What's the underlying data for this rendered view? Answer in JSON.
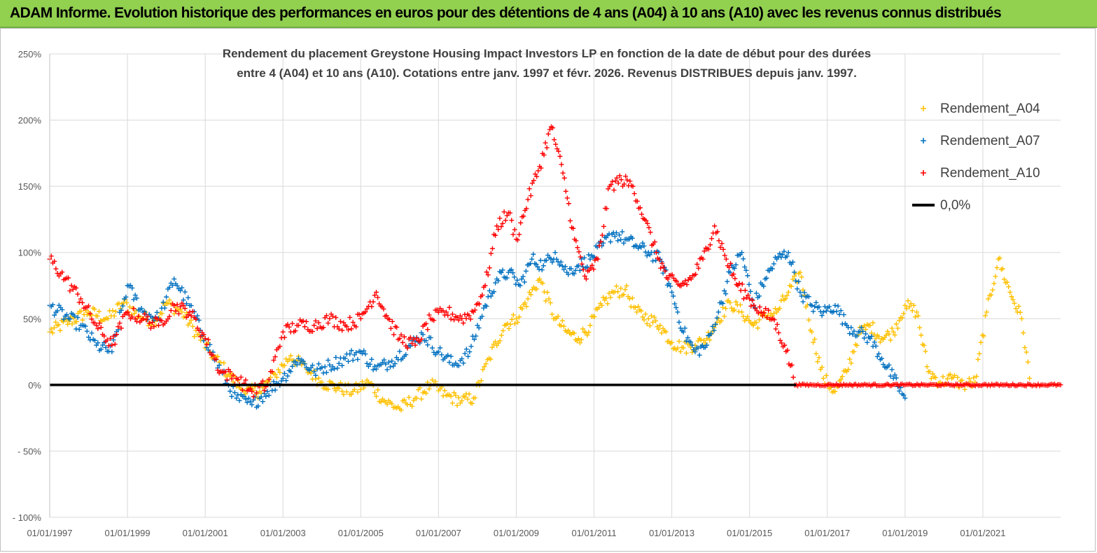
{
  "banner": {
    "title": "ADAM Informe. Evolution historique des performances en euros pour des détentions de 4 ans (A04) à 10 ans (A10) avec les revenus connus distribués"
  },
  "chart_data": {
    "type": "scatter",
    "title_lines": [
      "Rendement du placement Greystone Housing Impact Investors LP en fonction de la date de début pour des durées",
      "entre 4 (A04) et 10 ans (A10).  Cotations entre janv. 1997 et févr. 2026. Revenus DISTRIBUES depuis janv. 1997."
    ],
    "xlabel": "",
    "ylabel": "",
    "xlim": [
      1997.0,
      2023.0
    ],
    "ylim": [
      -100,
      250
    ],
    "y_ticks": [
      {
        "value": 250,
        "label": "250%"
      },
      {
        "value": 200,
        "label": "200%"
      },
      {
        "value": 150,
        "label": "150%"
      },
      {
        "value": 100,
        "label": "100%"
      },
      {
        "value": 50,
        "label": "50%"
      },
      {
        "value": 0,
        "label": "0%"
      },
      {
        "value": -50,
        "label": "- 50%"
      },
      {
        "value": -100,
        "label": "- 100%"
      }
    ],
    "x_ticks": [
      {
        "value": 1997.0,
        "label": "01/01/1997"
      },
      {
        "value": 1999.0,
        "label": "01/01/1999"
      },
      {
        "value": 2001.0,
        "label": "01/01/2001"
      },
      {
        "value": 2003.0,
        "label": "01/01/2003"
      },
      {
        "value": 2005.0,
        "label": "01/01/2005"
      },
      {
        "value": 2007.0,
        "label": "01/01/2007"
      },
      {
        "value": 2009.0,
        "label": "01/01/2009"
      },
      {
        "value": 2011.0,
        "label": "01/01/2011"
      },
      {
        "value": 2013.0,
        "label": "01/01/2013"
      },
      {
        "value": 2015.0,
        "label": "01/01/2015"
      },
      {
        "value": 2017.0,
        "label": "01/01/2017"
      },
      {
        "value": 2019.0,
        "label": "01/01/2019"
      },
      {
        "value": 2021.0,
        "label": "01/01/2021"
      }
    ],
    "grid": true,
    "legend_position": "right",
    "series": [
      {
        "name": "Rendement_A04",
        "color": "#ffc000",
        "marker": "plus",
        "x": [
          1997.0,
          1997.5,
          1998.0,
          1998.5,
          1998.9,
          1999.3,
          1999.7,
          2000.0,
          2000.4,
          2000.8,
          2001.2,
          2001.6,
          2002.0,
          2002.4,
          2002.8,
          2003.2,
          2003.6,
          2004.0,
          2004.4,
          2004.8,
          2005.2,
          2005.6,
          2006.0,
          2006.4,
          2006.8,
          2007.2,
          2007.6,
          2007.9,
          2008.3,
          2008.7,
          2009.0,
          2009.3,
          2009.6,
          2010.0,
          2010.3,
          2010.6,
          2010.9,
          2011.2,
          2011.5,
          2011.8,
          2012.1,
          2012.4,
          2012.7,
          2013.0,
          2013.3,
          2013.6,
          2013.9,
          2014.2,
          2014.5,
          2014.8,
          2015.1,
          2015.4,
          2015.7,
          2016.0,
          2016.3,
          2016.6,
          2016.9,
          2017.2,
          2017.5,
          2017.8,
          2018.1,
          2018.4,
          2018.7,
          2019.0,
          2019.3,
          2019.6,
          2019.9,
          2020.2,
          2020.5,
          2020.8,
          2021.1,
          2021.4,
          2021.7,
          2022.0,
          2022.2
        ],
        "y": [
          40,
          48,
          55,
          50,
          62,
          52,
          48,
          62,
          55,
          38,
          22,
          8,
          -5,
          -5,
          8,
          22,
          12,
          2,
          -2,
          -5,
          2,
          -12,
          -18,
          -10,
          0,
          -8,
          -12,
          -10,
          20,
          45,
          50,
          65,
          80,
          50,
          40,
          35,
          45,
          60,
          70,
          72,
          55,
          50,
          45,
          32,
          28,
          30,
          35,
          50,
          62,
          55,
          45,
          52,
          55,
          70,
          85,
          40,
          5,
          -5,
          10,
          38,
          45,
          35,
          40,
          60,
          55,
          10,
          2,
          5,
          0,
          2,
          55,
          95,
          70,
          50,
          5
        ]
      },
      {
        "name": "Rendement_A07",
        "color": "#0070c0",
        "marker": "plus",
        "x": [
          1997.0,
          1997.4,
          1997.8,
          1998.2,
          1998.6,
          1999.0,
          1999.4,
          1999.8,
          2000.2,
          2000.6,
          2001.0,
          2001.4,
          2001.8,
          2002.2,
          2002.6,
          2003.0,
          2003.4,
          2003.8,
          2004.2,
          2004.6,
          2005.0,
          2005.4,
          2005.8,
          2006.2,
          2006.6,
          2007.0,
          2007.4,
          2007.8,
          2008.2,
          2008.5,
          2008.8,
          2009.1,
          2009.4,
          2009.7,
          2010.0,
          2010.3,
          2010.6,
          2010.9,
          2011.2,
          2011.5,
          2011.8,
          2012.1,
          2012.4,
          2012.7,
          2013.0,
          2013.3,
          2013.6,
          2013.9,
          2014.2,
          2014.5,
          2014.8,
          2015.1,
          2015.4,
          2015.7,
          2016.0,
          2016.3,
          2016.6,
          2016.9,
          2017.2,
          2017.5,
          2017.8,
          2018.1,
          2018.4,
          2018.7,
          2019.0
        ],
        "y": [
          60,
          52,
          45,
          30,
          25,
          75,
          55,
          50,
          80,
          60,
          35,
          10,
          -10,
          -15,
          -5,
          5,
          20,
          10,
          15,
          20,
          25,
          12,
          18,
          28,
          38,
          25,
          15,
          25,
          60,
          80,
          85,
          75,
          95,
          90,
          100,
          85,
          90,
          95,
          105,
          115,
          110,
          105,
          100,
          95,
          70,
          40,
          25,
          30,
          55,
          85,
          100,
          60,
          80,
          95,
          100,
          70,
          60,
          55,
          60,
          45,
          40,
          35,
          20,
          5,
          -10
        ]
      },
      {
        "name": "Rendement_A10",
        "color": "#ff0000",
        "marker": "plus",
        "x": [
          1997.0,
          1997.4,
          1997.8,
          1998.2,
          1998.6,
          1999.0,
          1999.4,
          1999.8,
          2000.2,
          2000.6,
          2001.0,
          2001.4,
          2001.8,
          2002.2,
          2002.6,
          2003.0,
          2003.4,
          2003.8,
          2004.2,
          2004.6,
          2005.0,
          2005.4,
          2005.7,
          2006.0,
          2006.4,
          2006.8,
          2007.2,
          2007.6,
          2007.9,
          2008.2,
          2008.5,
          2008.8,
          2009.0,
          2009.3,
          2009.6,
          2009.9,
          2010.2,
          2010.5,
          2010.8,
          2011.1,
          2011.4,
          2011.7,
          2012.0,
          2012.3,
          2012.6,
          2012.9,
          2013.2,
          2013.5,
          2013.8,
          2014.1,
          2014.4,
          2014.7,
          2015.0,
          2015.3,
          2015.6,
          2015.9,
          2016.2,
          2016.6,
          2017.0,
          2017.5,
          2018.0,
          2018.5,
          2019.0,
          2019.5,
          2020.0,
          2020.5,
          2021.0,
          2021.5,
          2022.0,
          2022.5,
          2023.0
        ],
        "y": [
          95,
          80,
          65,
          45,
          30,
          55,
          50,
          45,
          60,
          55,
          35,
          10,
          5,
          -5,
          0,
          40,
          45,
          45,
          50,
          45,
          50,
          70,
          50,
          35,
          30,
          50,
          55,
          50,
          55,
          75,
          120,
          130,
          110,
          140,
          165,
          195,
          160,
          110,
          80,
          95,
          150,
          155,
          150,
          125,
          100,
          80,
          75,
          80,
          95,
          120,
          95,
          75,
          65,
          55,
          50,
          30,
          0,
          0,
          0,
          0,
          0,
          0,
          0,
          0,
          0,
          0,
          0,
          0,
          0,
          0,
          0
        ]
      },
      {
        "name": "0,0%",
        "color": "#000000",
        "marker": "line",
        "x": [
          1997.0,
          2016.2
        ],
        "y": [
          0,
          0
        ]
      }
    ]
  }
}
